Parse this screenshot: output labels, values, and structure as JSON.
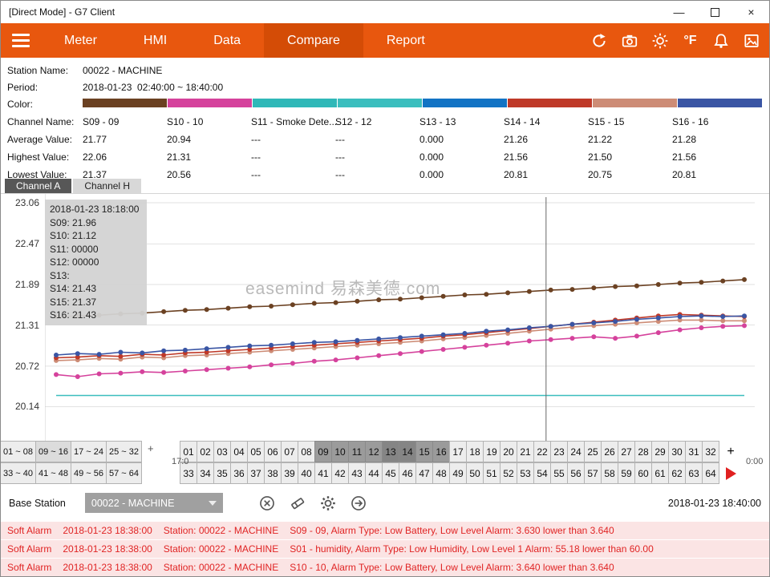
{
  "window": {
    "title": "[Direct Mode] - G7 Client",
    "minimize": "—",
    "close": "×"
  },
  "nav": {
    "items": [
      "Meter",
      "HMI",
      "Data",
      "Compare",
      "Report"
    ],
    "active": "Compare",
    "fahrenheit_label": "°F"
  },
  "info": {
    "station_label": "Station Name:",
    "station_value": "00022 - MACHINE",
    "period_label": "Period:",
    "period_value": "2018-01-23  02:40:00 ~ 18:40:00",
    "color_label": "Color:",
    "channel_label": "Channel Name:",
    "avg_label": "Average Value:",
    "high_label": "Highest Value:",
    "low_label": "Lowest Value:",
    "columns": [
      {
        "name": "S09 - 09",
        "color": "#6B4122",
        "avg": "21.77",
        "high": "22.06",
        "low": "21.37"
      },
      {
        "name": "S10 - 10",
        "color": "#D5429C",
        "avg": "20.94",
        "high": "21.31",
        "low": "20.56"
      },
      {
        "name": "S11 - Smoke Dete...",
        "color": "#2FB8B8",
        "avg": "---",
        "high": "---",
        "low": "---"
      },
      {
        "name": "S12 - 12",
        "color": "#3BBEBE",
        "avg": "---",
        "high": "---",
        "low": "---"
      },
      {
        "name": "S13 - 13",
        "color": "#1273C4",
        "avg": "0.000",
        "high": "0.000",
        "low": "0.000"
      },
      {
        "name": "S14 - 14",
        "color": "#BF3928",
        "avg": "21.26",
        "high": "21.56",
        "low": "20.81"
      },
      {
        "name": "S15 - 15",
        "color": "#CD8C76",
        "avg": "21.22",
        "high": "21.50",
        "low": "20.75"
      },
      {
        "name": "S16 - 16",
        "color": "#3A55A4",
        "avg": "21.28",
        "high": "21.56",
        "low": "20.81"
      }
    ]
  },
  "channel_tabs": [
    {
      "label": "Channel A",
      "active": true
    },
    {
      "label": "Channel H",
      "active": false
    }
  ],
  "chart_data": {
    "type": "line",
    "y_ticks": [
      23.06,
      22.47,
      21.89,
      21.31,
      20.72,
      20.14,
      19.56
    ],
    "y_range": [
      19.56,
      23.06
    ],
    "x_time_range": "02:40:00 ~ 18:40:00",
    "watermark": "easemind 易森美德.com",
    "crosshair_x_frac": 0.706,
    "tooltip": {
      "lines": [
        "2018-01-23 18:18:00",
        "S09: 21.96",
        "S10: 21.12",
        "S11: 00000",
        "S12: 00000",
        "S13:",
        "S14: 21.43",
        "S15: 21.37",
        "S16: 21.43"
      ]
    },
    "series": [
      {
        "name": "S12",
        "color": "#3BBEBE",
        "markers": false,
        "constant": 20.3
      },
      {
        "name": "S10",
        "color": "#D5429C",
        "markers": true,
        "values": [
          20.6,
          20.57,
          20.61,
          20.62,
          20.64,
          20.63,
          20.65,
          20.67,
          20.69,
          20.71,
          20.74,
          20.76,
          20.79,
          20.81,
          20.84,
          20.87,
          20.9,
          20.93,
          20.96,
          20.99,
          21.02,
          21.05,
          21.08,
          21.1,
          21.12,
          21.14,
          21.12,
          21.15,
          21.2,
          21.24,
          21.27,
          21.29,
          21.3
        ]
      },
      {
        "name": "S15",
        "color": "#CD8C76",
        "markers": true,
        "values": [
          20.8,
          20.81,
          20.83,
          20.82,
          20.85,
          20.84,
          20.87,
          20.88,
          20.9,
          20.92,
          20.94,
          20.96,
          20.98,
          21.0,
          21.02,
          21.04,
          21.06,
          21.08,
          21.11,
          21.13,
          21.16,
          21.19,
          21.22,
          21.25,
          21.28,
          21.3,
          21.32,
          21.34,
          21.36,
          21.38,
          21.38,
          21.37,
          21.37
        ]
      },
      {
        "name": "S14",
        "color": "#BF3928",
        "markers": true,
        "values": [
          20.84,
          20.85,
          20.87,
          20.86,
          20.89,
          20.88,
          20.91,
          20.92,
          20.94,
          20.96,
          20.98,
          21.0,
          21.02,
          21.04,
          21.06,
          21.08,
          21.1,
          21.12,
          21.15,
          21.17,
          21.2,
          21.23,
          21.26,
          21.29,
          21.32,
          21.35,
          21.38,
          21.41,
          21.44,
          21.46,
          21.45,
          21.44,
          21.43
        ]
      },
      {
        "name": "S16",
        "color": "#3A55A4",
        "markers": true,
        "values": [
          20.88,
          20.9,
          20.89,
          20.92,
          20.91,
          20.94,
          20.95,
          20.97,
          20.99,
          21.01,
          21.02,
          21.04,
          21.06,
          21.07,
          21.09,
          21.11,
          21.13,
          21.15,
          21.17,
          21.19,
          21.22,
          21.24,
          21.27,
          21.29,
          21.32,
          21.34,
          21.36,
          21.39,
          21.41,
          21.43,
          21.44,
          21.43,
          21.44
        ]
      },
      {
        "name": "S09",
        "color": "#6B4122",
        "markers": true,
        "values": [
          21.43,
          21.44,
          21.45,
          21.47,
          21.48,
          21.5,
          21.52,
          21.53,
          21.55,
          21.57,
          21.58,
          21.6,
          21.62,
          21.63,
          21.65,
          21.67,
          21.68,
          21.7,
          21.72,
          21.74,
          21.75,
          21.77,
          21.79,
          21.81,
          21.82,
          21.84,
          21.86,
          21.87,
          21.89,
          21.91,
          21.92,
          21.94,
          21.96
        ]
      }
    ]
  },
  "selector": {
    "groups_row1": [
      "01 ~ 08",
      "09 ~ 16",
      "17 ~ 24",
      "25 ~ 32"
    ],
    "groups_row2": [
      "33 ~ 40",
      "41 ~ 48",
      "49 ~ 56",
      "57 ~ 64"
    ],
    "active_group": "09 ~ 16",
    "numbers_row1": [
      "01",
      "02",
      "03",
      "04",
      "05",
      "06",
      "07",
      "08",
      "09",
      "10",
      "11",
      "12",
      "13",
      "14",
      "15",
      "16",
      "17",
      "18",
      "19",
      "20",
      "21",
      "22",
      "23",
      "24",
      "25",
      "26",
      "27",
      "28",
      "29",
      "30",
      "31",
      "32"
    ],
    "numbers_row2": [
      "33",
      "34",
      "35",
      "36",
      "37",
      "38",
      "39",
      "40",
      "41",
      "42",
      "43",
      "44",
      "45",
      "46",
      "47",
      "48",
      "49",
      "50",
      "51",
      "52",
      "53",
      "54",
      "55",
      "56",
      "57",
      "58",
      "59",
      "60",
      "61",
      "62",
      "63",
      "64"
    ],
    "highlighted": [
      "09",
      "10",
      "11",
      "12",
      "13",
      "14",
      "15",
      "16"
    ],
    "pressed": [
      "13",
      "14"
    ],
    "plus_left": "+",
    "plus_right": "+",
    "axis_fragment_left": "17:0",
    "axis_fragment_right": "0:00"
  },
  "footer": {
    "base_station_label": "Base Station",
    "dropdown_value": "00022 - MACHINE",
    "timestamp": "2018-01-23 18:40:00"
  },
  "alarms": [
    {
      "type": "Soft Alarm",
      "time": "2018-01-23 18:38:00",
      "station": "Station: 00022 - MACHINE",
      "message": "S09 - 09, Alarm Type: Low Battery, Low Level Alarm: 3.630 lower than 3.640"
    },
    {
      "type": "Soft Alarm",
      "time": "2018-01-23 18:38:00",
      "station": "Station: 00022 - MACHINE",
      "message": "S01 - humidity, Alarm Type: Low Humidity, Low Level 1 Alarm: 55.18 lower than 60.00"
    },
    {
      "type": "Soft Alarm",
      "time": "2018-01-23 18:38:00",
      "station": "Station: 00022 - MACHINE",
      "message": "S10 - 10, Alarm Type: Low Battery, Low Level Alarm: 3.640 lower than 3.640"
    }
  ]
}
